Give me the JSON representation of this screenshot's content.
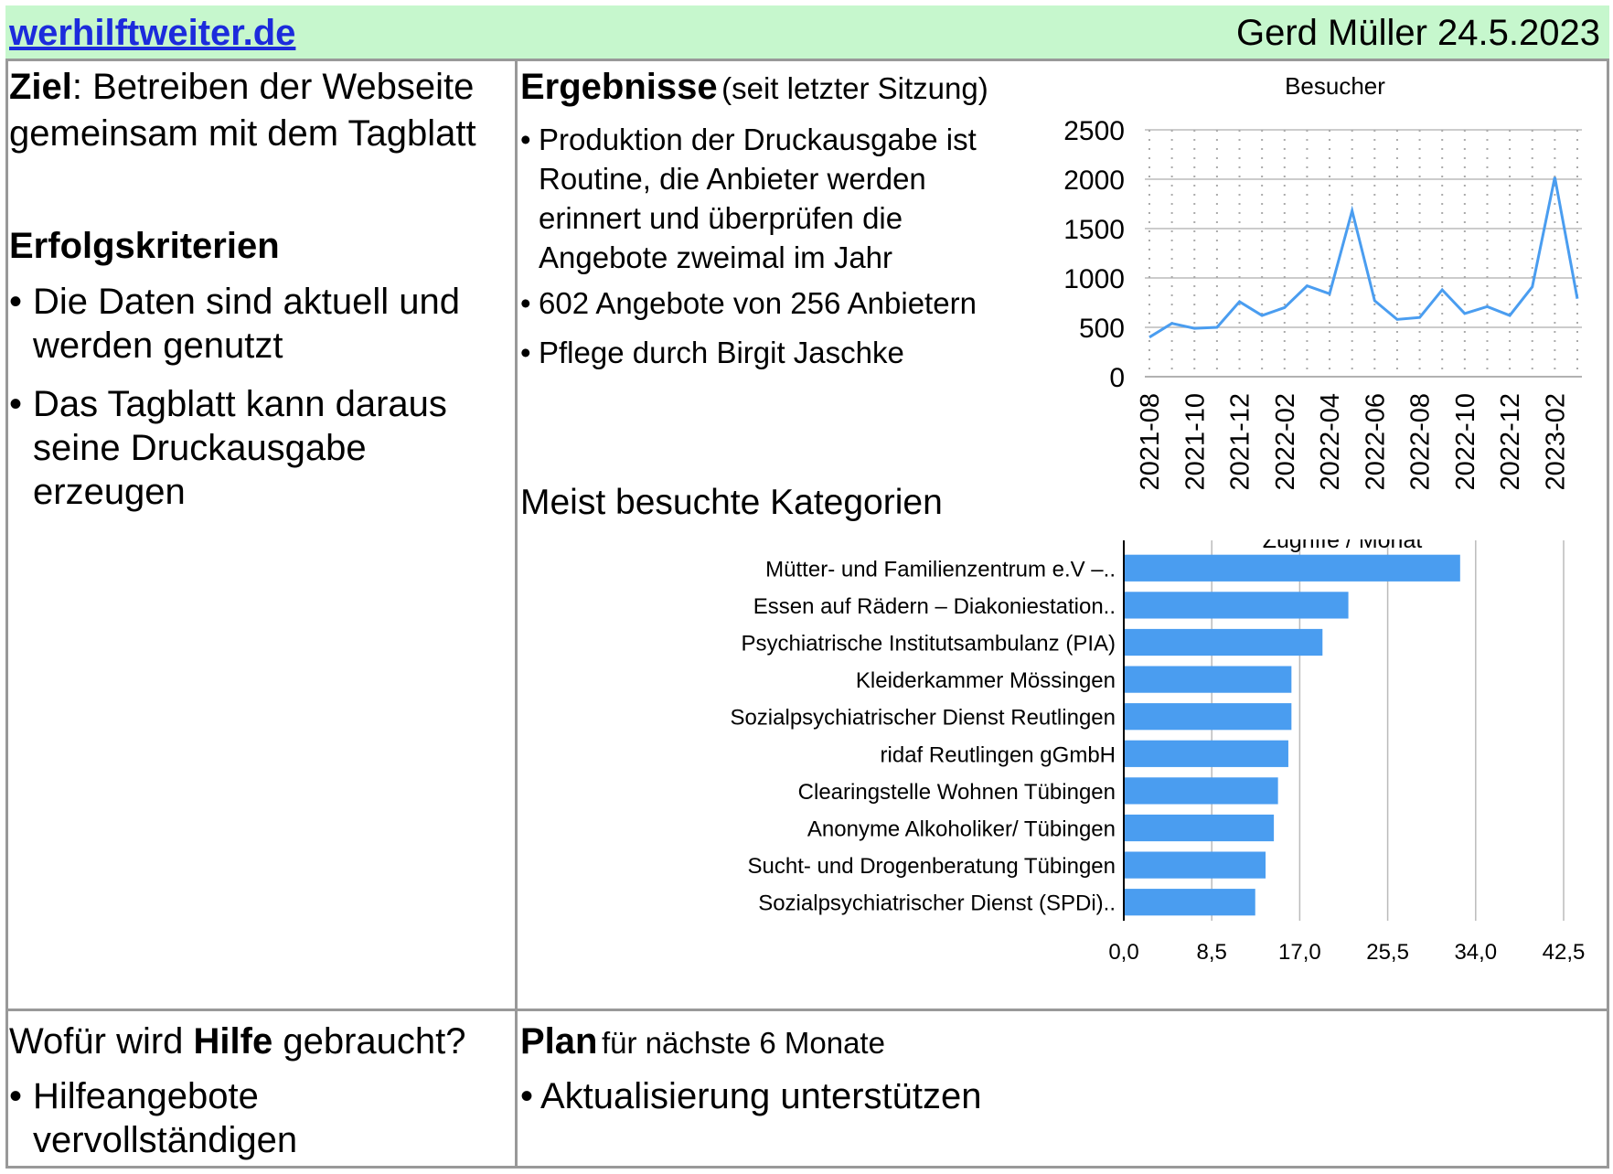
{
  "header": {
    "site_link": "werhilftweiter.de",
    "author_date": "Gerd Müller 24.5.2023"
  },
  "goal": {
    "label": "Ziel",
    "text_line1": ": Betreiben der Webseite",
    "text_line2": "gemeinsam mit dem Tagblatt"
  },
  "success_criteria": {
    "heading": "Erfolgskriterien",
    "items": [
      {
        "line1": "Die Daten sind aktuell und",
        "line2": "werden genutzt"
      },
      {
        "line1": "Das Tagblatt kann daraus",
        "line2": "seine Druckausgabe",
        "line3": "erzeugen"
      }
    ]
  },
  "results": {
    "heading": "Ergebnisse",
    "subheading": "(seit letzter Sitzung)",
    "items": [
      {
        "lines": [
          "Produktion der Druckausgabe ist",
          "Routine, die Anbieter werden",
          "erinnert und überprüfen die",
          "Angebote zweimal im Jahr"
        ]
      },
      {
        "lines": [
          "602 Angebote von 256 Anbietern"
        ]
      },
      {
        "lines": [
          "Pflege durch Birgit Jaschke"
        ]
      }
    ]
  },
  "categories_heading": "Meist besuchte Kategorien",
  "help": {
    "prefix": "Wofür wird ",
    "bold": "Hilfe",
    "suffix": " gebraucht?",
    "items": [
      {
        "line1": "Hilfeangebote",
        "line2": "vervollständigen"
      }
    ]
  },
  "plan": {
    "heading": "Plan",
    "subheading": "für nächste 6 Monate",
    "items": [
      "Aktualisierung unterstützen"
    ]
  },
  "bullet_char": "•",
  "colors": {
    "header_bg": "#c6f7cd",
    "link": "#1c2bdc",
    "series": "#4a9df0",
    "border": "#999999"
  },
  "chart_data": [
    {
      "type": "line",
      "title": "Besucher",
      "x": [
        "2021-08",
        "2021-09",
        "2021-10",
        "2021-11",
        "2021-12",
        "2022-01",
        "2022-02",
        "2022-03",
        "2022-04",
        "2022-05",
        "2022-06",
        "2022-07",
        "2022-08",
        "2022-09",
        "2022-10",
        "2022-11",
        "2022-12",
        "2023-01",
        "2023-02",
        "2023-03"
      ],
      "x_tick_labels": [
        "2021-08",
        "2021-10",
        "2021-12",
        "2022-02",
        "2022-04",
        "2022-06",
        "2022-08",
        "2022-10",
        "2022-12",
        "2023-02"
      ],
      "values": [
        400,
        540,
        490,
        500,
        760,
        620,
        700,
        920,
        840,
        1680,
        770,
        580,
        600,
        880,
        640,
        710,
        620,
        910,
        2020,
        790
      ],
      "ylim": [
        0,
        2500
      ],
      "y_ticks": [
        "0",
        "500",
        "1000",
        "1500",
        "2000",
        "2500"
      ],
      "grid": "dotted"
    },
    {
      "type": "bar",
      "orientation": "horizontal",
      "title": "Zugriffe / Monat",
      "categories": [
        "Mütter- und Familienzentrum e.V –..",
        "Essen auf Rädern – Diakoniestation..",
        "Psychiatrische Institutsambulanz (PIA)",
        "Kleiderkammer Mössingen",
        "Sozialpsychiatrischer Dienst Reutlingen",
        "ridaf Reutlingen gGmbH",
        "Clearingstelle Wohnen Tübingen",
        "Anonyme Alkoholiker/ Tübingen",
        "Sucht- und Drogenberatung Tübingen",
        "Sozialpsychiatrischer Dienst (SPDi).."
      ],
      "values": [
        32.5,
        21.7,
        19.2,
        16.2,
        16.2,
        15.9,
        14.9,
        14.5,
        13.7,
        12.7
      ],
      "xlim": [
        0,
        42.5
      ],
      "x_ticks": [
        "0,0",
        "8,5",
        "17,0",
        "25,5",
        "34,0",
        "42,5"
      ]
    }
  ]
}
